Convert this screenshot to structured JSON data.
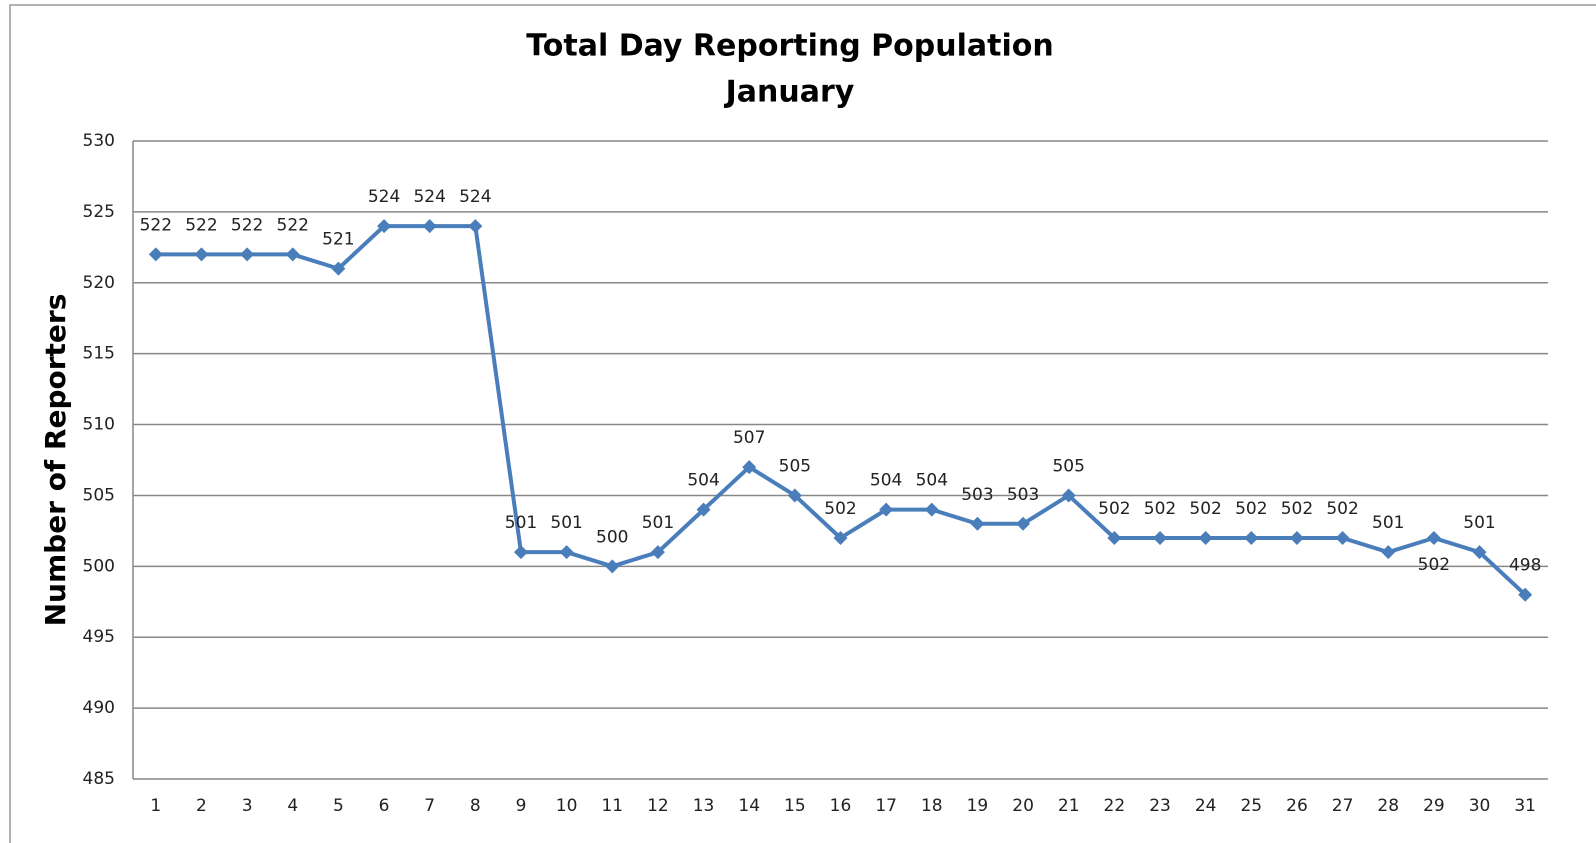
{
  "chart_data": {
    "type": "line",
    "title": "Total Day Reporting Population",
    "subtitle": "January",
    "y_label": "Number of Reporters",
    "categories": [
      "1",
      "2",
      "3",
      "4",
      "5",
      "6",
      "7",
      "8",
      "9",
      "10",
      "11",
      "12",
      "13",
      "14",
      "15",
      "16",
      "17",
      "18",
      "19",
      "20",
      "21",
      "22",
      "23",
      "24",
      "25",
      "26",
      "27",
      "28",
      "29",
      "30",
      "31"
    ],
    "values": [
      522,
      522,
      522,
      522,
      521,
      524,
      524,
      524,
      501,
      501,
      500,
      501,
      504,
      507,
      505,
      502,
      504,
      504,
      503,
      503,
      505,
      502,
      502,
      502,
      502,
      502,
      502,
      501,
      502,
      501,
      498
    ],
    "color": "#4a7ebb",
    "ylim": [
      485,
      530
    ],
    "yticks": [
      485,
      490,
      495,
      500,
      505,
      510,
      515,
      520,
      525,
      530
    ],
    "grid": true
  }
}
